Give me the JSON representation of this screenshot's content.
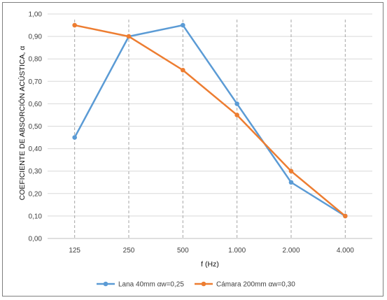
{
  "chart_data": {
    "type": "line",
    "xlabel": "f (Hz)",
    "ylabel": "COEFICIENTE DE ABSORCIÓN ACÚSTICA, α",
    "categories": [
      "125",
      "250",
      "500",
      "1.000",
      "2.000",
      "4.000"
    ],
    "ylim": [
      0,
      1
    ],
    "yticks": [
      "0,00",
      "0,10",
      "0,20",
      "0,30",
      "0,40",
      "0,50",
      "0,60",
      "0,70",
      "0,80",
      "0,90",
      "1,00"
    ],
    "grid": "horizontal",
    "x_gridlines_dashed": true,
    "legend_position": "bottom",
    "series": [
      {
        "name": "Lana 40mm αw=0,25",
        "color": "#5b9bd5",
        "values": [
          0.45,
          0.9,
          0.95,
          0.6,
          0.25,
          0.1
        ]
      },
      {
        "name": "Cámara 200mm αw=0,30",
        "color": "#ed7d31",
        "values": [
          0.95,
          0.9,
          0.75,
          0.55,
          0.3,
          0.1
        ]
      }
    ]
  }
}
